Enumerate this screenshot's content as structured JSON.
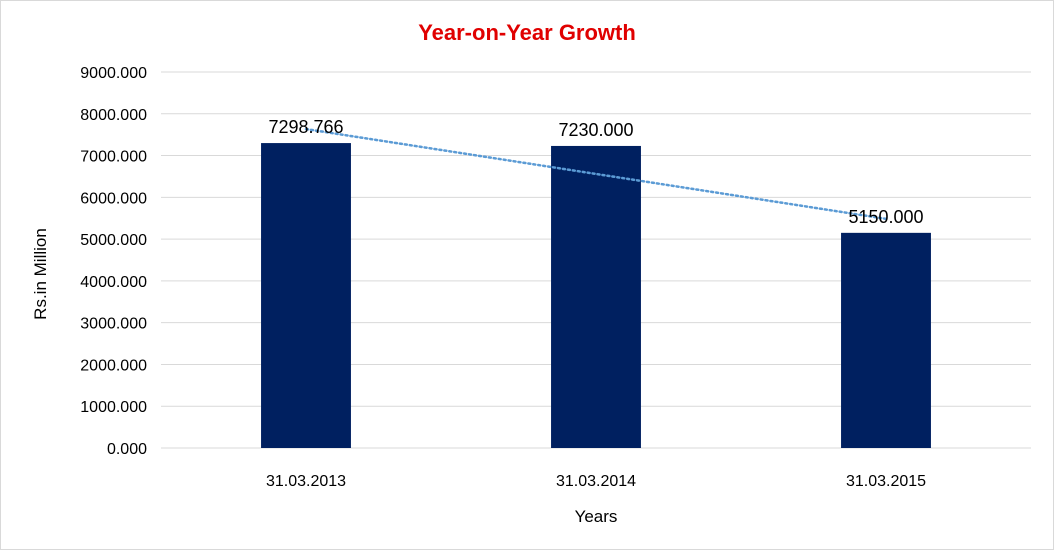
{
  "chart_data": {
    "type": "bar",
    "title": "Year-on-Year Growth",
    "xlabel": "Years",
    "ylabel": "Rs.in Million",
    "categories": [
      "31.03.2013",
      "31.03.2014",
      "31.03.2015"
    ],
    "values": [
      7298.766,
      7230.0,
      5150.0
    ],
    "data_labels": [
      "7298.766",
      "7230.000",
      "5150.000"
    ],
    "yticks": [
      "0.000",
      "1000.000",
      "2000.000",
      "3000.000",
      "4000.000",
      "5000.000",
      "6000.000",
      "7000.000",
      "8000.000",
      "9000.000"
    ],
    "ylim": [
      0,
      9000
    ],
    "grid": true,
    "trendline": {
      "type": "linear",
      "style": "dotted"
    },
    "colors": {
      "bar": "#002060",
      "title": "#e00000",
      "trendline": "#5b9bd5",
      "grid": "#d9d9d9"
    }
  }
}
